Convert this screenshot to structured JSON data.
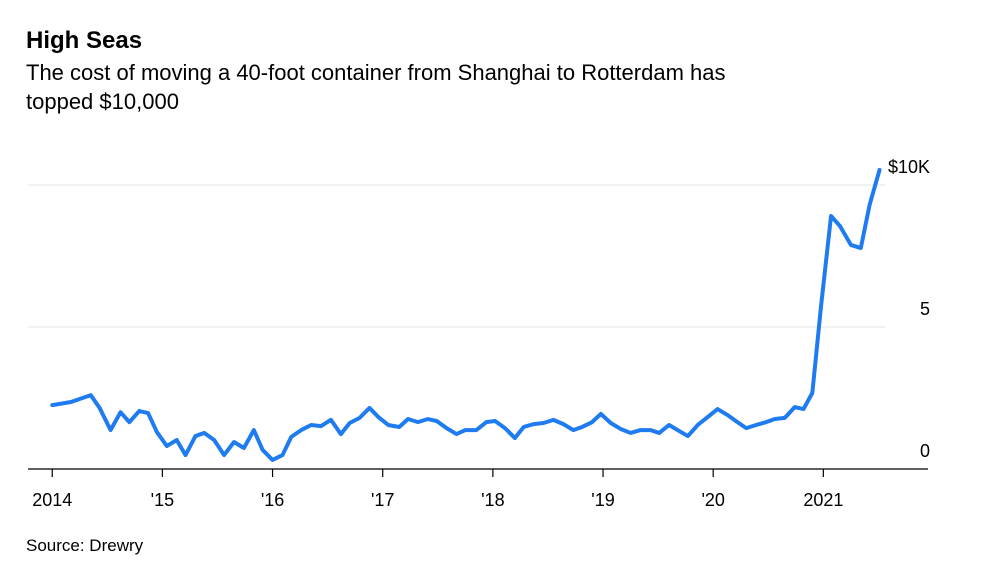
{
  "chart_data": {
    "type": "line",
    "title": "High Seas",
    "subtitle_lines": [
      "The cost of moving a 40-foot container from Shanghai to Rotterdam has",
      "topped $10,000"
    ],
    "source": "Source: Drewry",
    "x": [
      2014.0,
      2014.17,
      2014.35,
      2014.43,
      2014.53,
      2014.62,
      2014.7,
      2014.79,
      2014.87,
      2014.95,
      2015.04,
      2015.13,
      2015.21,
      2015.3,
      2015.38,
      2015.47,
      2015.56,
      2015.65,
      2015.74,
      2015.83,
      2015.91,
      2016.0,
      2016.09,
      2016.17,
      2016.26,
      2016.35,
      2016.44,
      2016.53,
      2016.62,
      2016.7,
      2016.79,
      2016.88,
      2016.96,
      2017.05,
      2017.15,
      2017.23,
      2017.32,
      2017.41,
      2017.49,
      2017.58,
      2017.67,
      2017.75,
      2017.85,
      2017.94,
      2018.02,
      2018.11,
      2018.2,
      2018.28,
      2018.37,
      2018.46,
      2018.55,
      2018.64,
      2018.73,
      2018.81,
      2018.9,
      2018.98,
      2019.07,
      2019.16,
      2019.25,
      2019.34,
      2019.43,
      2019.51,
      2019.6,
      2019.69,
      2019.77,
      2019.86,
      2019.95,
      2020.04,
      2020.13,
      2020.22,
      2020.3,
      2020.39,
      2020.48,
      2020.56,
      2020.65,
      2020.74,
      2020.82,
      2020.9,
      2020.98,
      2021.07,
      2021.15,
      2021.25,
      2021.34,
      2021.42,
      2021.51
    ],
    "series": [
      {
        "color": "#1f7cf0",
        "values": [
          2.25,
          2.36,
          2.6,
          2.15,
          1.37,
          2.0,
          1.65,
          2.04,
          1.97,
          1.3,
          0.81,
          1.02,
          0.49,
          1.16,
          1.27,
          1.02,
          0.49,
          0.95,
          0.74,
          1.37,
          0.67,
          0.32,
          0.49,
          1.13,
          1.37,
          1.55,
          1.51,
          1.73,
          1.23,
          1.62,
          1.8,
          2.15,
          1.83,
          1.55,
          1.48,
          1.76,
          1.65,
          1.76,
          1.69,
          1.44,
          1.23,
          1.37,
          1.37,
          1.65,
          1.69,
          1.44,
          1.09,
          1.48,
          1.58,
          1.62,
          1.73,
          1.58,
          1.37,
          1.48,
          1.65,
          1.94,
          1.62,
          1.41,
          1.27,
          1.37,
          1.37,
          1.27,
          1.55,
          1.34,
          1.16,
          1.55,
          1.83,
          2.11,
          1.9,
          1.65,
          1.44,
          1.55,
          1.65,
          1.76,
          1.8,
          2.18,
          2.11,
          2.68,
          5.77,
          8.91,
          8.56,
          7.89,
          7.78,
          9.3,
          10.53
        ]
      }
    ],
    "xlim": [
      2013.78,
      2021.95
    ],
    "xticks": [
      {
        "value": 2014,
        "label": "2014"
      },
      {
        "value": 2015,
        "label": "'15"
      },
      {
        "value": 2016,
        "label": "'16"
      },
      {
        "value": 2017,
        "label": "'17"
      },
      {
        "value": 2018,
        "label": "'18"
      },
      {
        "value": 2019,
        "label": "'19"
      },
      {
        "value": 2020,
        "label": "'20"
      },
      {
        "value": 2021,
        "label": "2021"
      }
    ],
    "ylim": [
      0,
      11
    ],
    "yticks": [
      0,
      5,
      {
        "value": 10,
        "label": "$10K"
      }
    ],
    "grid": true
  }
}
